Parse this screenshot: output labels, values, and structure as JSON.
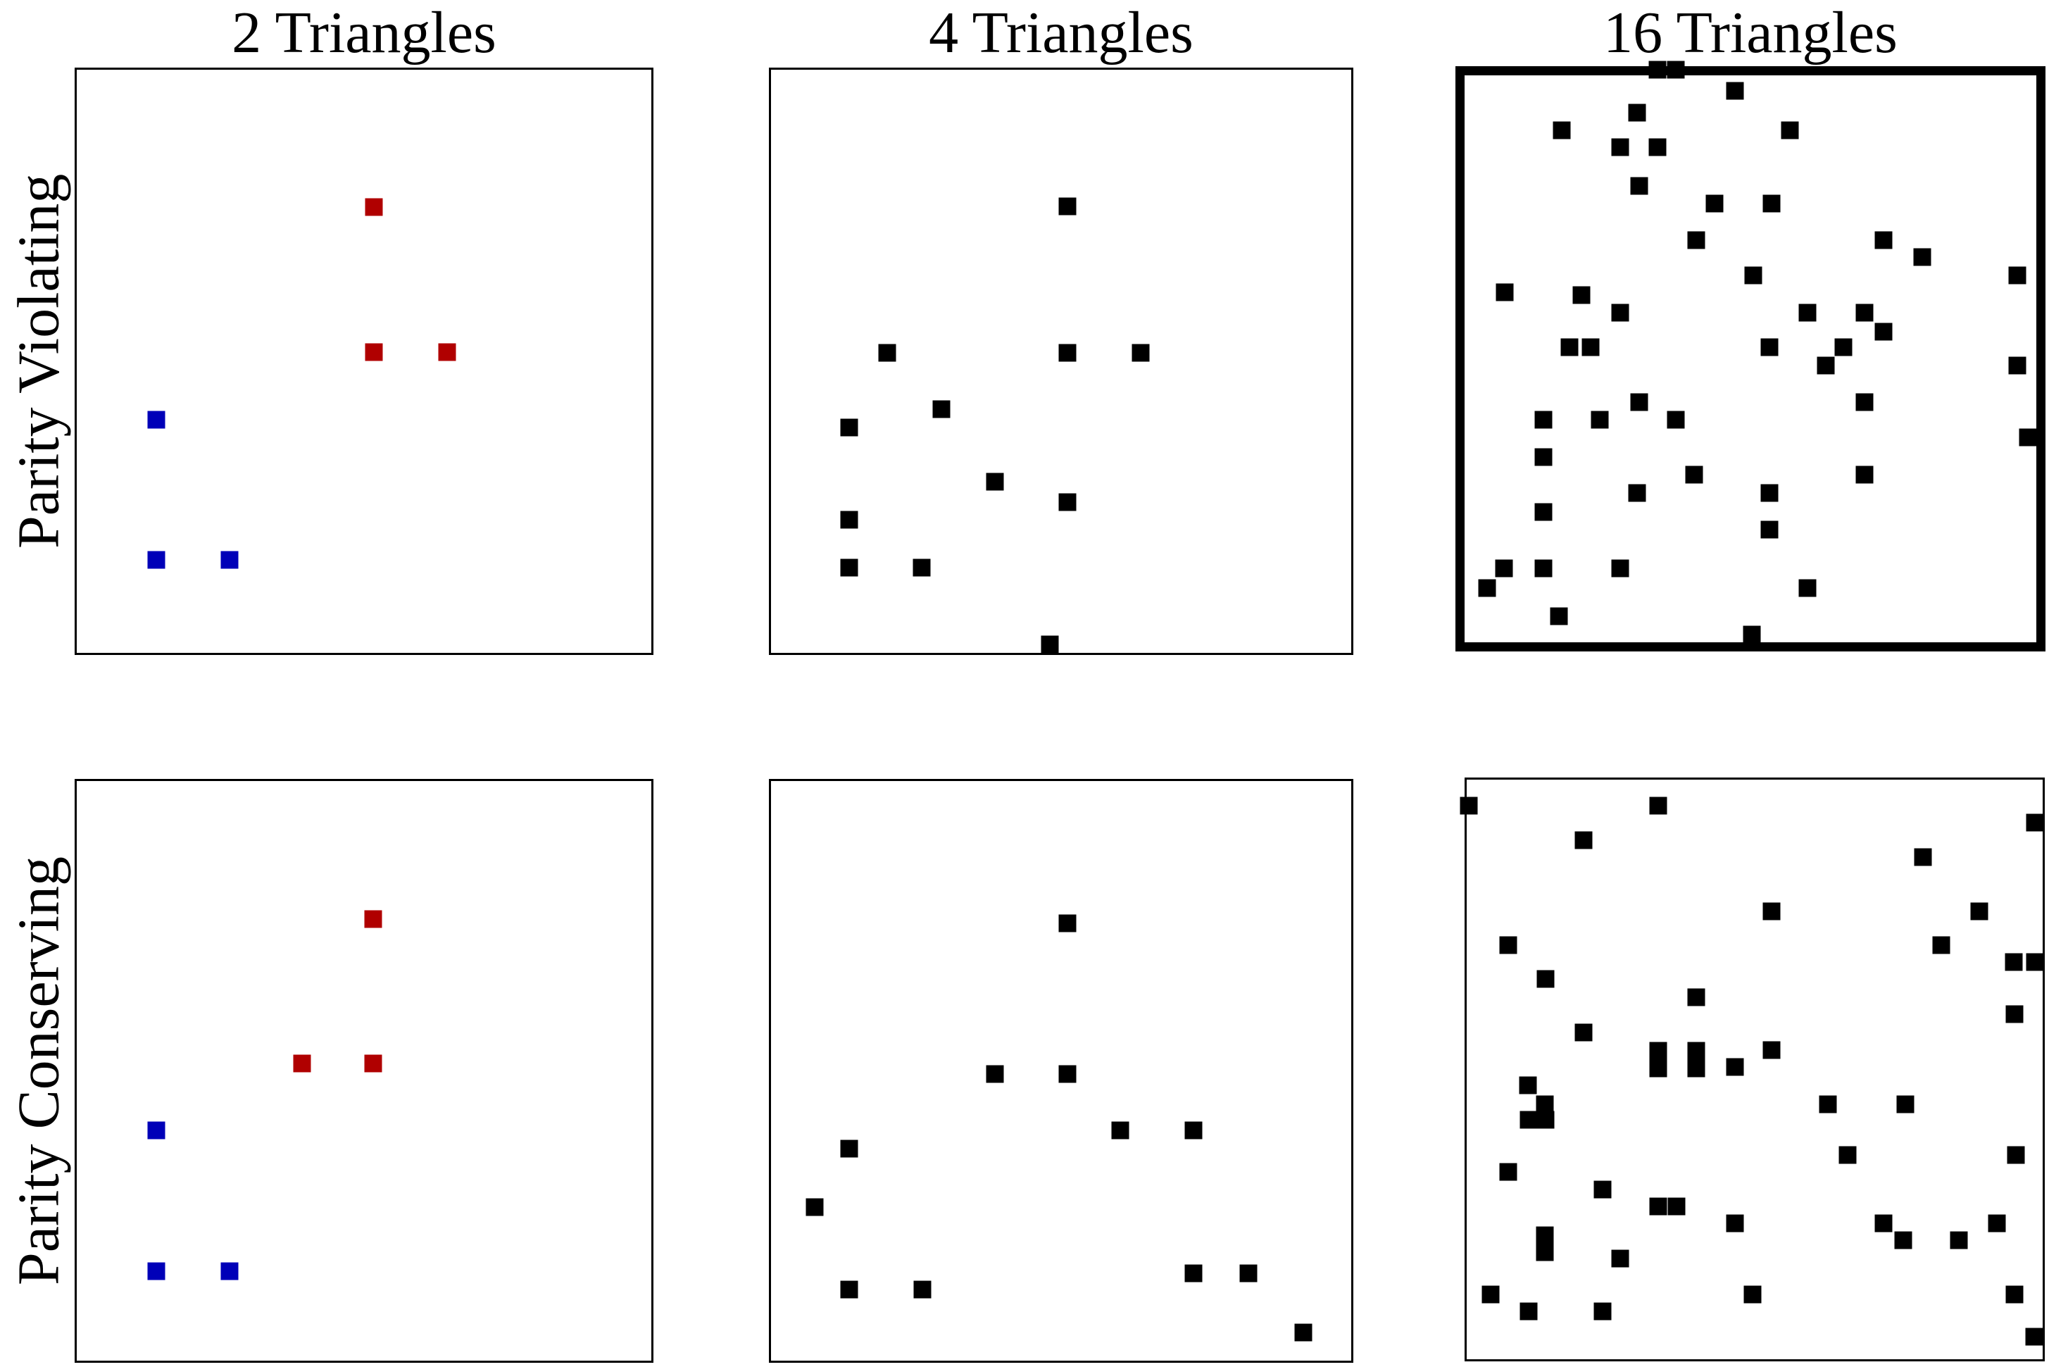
{
  "figure": {
    "column_titles": [
      "2 Triangles",
      "4 Triangles",
      "16 Triangles"
    ],
    "row_labels": [
      "Parity Violating",
      "Parity Conserving"
    ],
    "colors": {
      "red": "#b00000",
      "blue": "#0000b8",
      "black": "#000000"
    },
    "highlighted_panel": {
      "row": "Parity Violating",
      "column": "16 Triangles",
      "style": "thick black border"
    }
  },
  "chart_data": [
    {
      "panel": "top-left",
      "row": "Parity Violating",
      "column": "2 Triangles",
      "type": "scatter",
      "marker": "square",
      "coord_space": "normalized 0-1 within panel, y measured downward",
      "points": [
        {
          "x": 0.517,
          "y": 0.236,
          "c": "red"
        },
        {
          "x": 0.517,
          "y": 0.484,
          "c": "red"
        },
        {
          "x": 0.644,
          "y": 0.484,
          "c": "red"
        },
        {
          "x": 0.139,
          "y": 0.6,
          "c": "blue"
        },
        {
          "x": 0.139,
          "y": 0.841,
          "c": "blue"
        },
        {
          "x": 0.266,
          "y": 0.841,
          "c": "blue"
        }
      ]
    },
    {
      "panel": "top-middle",
      "row": "Parity Violating",
      "column": "4 Triangles",
      "type": "scatter",
      "marker": "square",
      "coord_space": "normalized 0-1 within panel, y measured downward",
      "points": [
        {
          "x": 0.511,
          "y": 0.234,
          "c": "black"
        },
        {
          "x": 0.2,
          "y": 0.486,
          "c": "black"
        },
        {
          "x": 0.511,
          "y": 0.486,
          "c": "black"
        },
        {
          "x": 0.637,
          "y": 0.486,
          "c": "black"
        },
        {
          "x": 0.294,
          "y": 0.582,
          "c": "black"
        },
        {
          "x": 0.135,
          "y": 0.613,
          "c": "black"
        },
        {
          "x": 0.386,
          "y": 0.707,
          "c": "black"
        },
        {
          "x": 0.511,
          "y": 0.741,
          "c": "black"
        },
        {
          "x": 0.135,
          "y": 0.772,
          "c": "black"
        },
        {
          "x": 0.135,
          "y": 0.854,
          "c": "black"
        },
        {
          "x": 0.26,
          "y": 0.854,
          "c": "black"
        },
        {
          "x": 0.48,
          "y": 0.986,
          "c": "black"
        }
      ]
    },
    {
      "panel": "top-right",
      "row": "Parity Violating",
      "column": "16 Triangles",
      "type": "scatter",
      "marker": "square",
      "highlighted": true,
      "coord_space": "normalized 0-1 within panel, y measured downward",
      "points": [
        {
          "x": 0.338,
          "y": -0.01,
          "c": "black"
        },
        {
          "x": 0.37,
          "y": -0.01,
          "c": "black"
        },
        {
          "x": 0.473,
          "y": 0.027,
          "c": "black"
        },
        {
          "x": 0.302,
          "y": 0.066,
          "c": "black"
        },
        {
          "x": 0.17,
          "y": 0.097,
          "c": "black"
        },
        {
          "x": 0.569,
          "y": 0.097,
          "c": "black"
        },
        {
          "x": 0.272,
          "y": 0.127,
          "c": "black"
        },
        {
          "x": 0.338,
          "y": 0.127,
          "c": "black"
        },
        {
          "x": 0.306,
          "y": 0.195,
          "c": "black"
        },
        {
          "x": 0.437,
          "y": 0.226,
          "c": "black"
        },
        {
          "x": 0.537,
          "y": 0.226,
          "c": "black"
        },
        {
          "x": 0.405,
          "y": 0.291,
          "c": "black"
        },
        {
          "x": 0.733,
          "y": 0.291,
          "c": "black"
        },
        {
          "x": 0.801,
          "y": 0.321,
          "c": "black"
        },
        {
          "x": 0.505,
          "y": 0.353,
          "c": "black"
        },
        {
          "x": 0.967,
          "y": 0.353,
          "c": "black"
        },
        {
          "x": 0.07,
          "y": 0.382,
          "c": "black"
        },
        {
          "x": 0.205,
          "y": 0.387,
          "c": "black"
        },
        {
          "x": 0.272,
          "y": 0.419,
          "c": "black"
        },
        {
          "x": 0.6,
          "y": 0.419,
          "c": "black"
        },
        {
          "x": 0.7,
          "y": 0.419,
          "c": "black"
        },
        {
          "x": 0.733,
          "y": 0.452,
          "c": "black"
        },
        {
          "x": 0.183,
          "y": 0.479,
          "c": "black"
        },
        {
          "x": 0.221,
          "y": 0.479,
          "c": "black"
        },
        {
          "x": 0.533,
          "y": 0.479,
          "c": "black"
        },
        {
          "x": 0.663,
          "y": 0.479,
          "c": "black"
        },
        {
          "x": 0.632,
          "y": 0.512,
          "c": "black"
        },
        {
          "x": 0.967,
          "y": 0.512,
          "c": "black"
        },
        {
          "x": 0.306,
          "y": 0.576,
          "c": "black"
        },
        {
          "x": 0.7,
          "y": 0.576,
          "c": "black"
        },
        {
          "x": 0.138,
          "y": 0.608,
          "c": "black"
        },
        {
          "x": 0.237,
          "y": 0.608,
          "c": "black"
        },
        {
          "x": 0.369,
          "y": 0.608,
          "c": "black"
        },
        {
          "x": 0.985,
          "y": 0.638,
          "c": "black"
        },
        {
          "x": 0.138,
          "y": 0.673,
          "c": "black"
        },
        {
          "x": 0.401,
          "y": 0.704,
          "c": "black"
        },
        {
          "x": 0.7,
          "y": 0.704,
          "c": "black"
        },
        {
          "x": 0.302,
          "y": 0.737,
          "c": "black"
        },
        {
          "x": 0.533,
          "y": 0.737,
          "c": "black"
        },
        {
          "x": 0.138,
          "y": 0.77,
          "c": "black"
        },
        {
          "x": 0.533,
          "y": 0.801,
          "c": "black"
        },
        {
          "x": 0.069,
          "y": 0.869,
          "c": "black"
        },
        {
          "x": 0.138,
          "y": 0.869,
          "c": "black"
        },
        {
          "x": 0.272,
          "y": 0.869,
          "c": "black"
        },
        {
          "x": 0.04,
          "y": 0.904,
          "c": "black"
        },
        {
          "x": 0.6,
          "y": 0.904,
          "c": "black"
        },
        {
          "x": 0.165,
          "y": 0.954,
          "c": "black"
        },
        {
          "x": 0.502,
          "y": 0.986,
          "c": "black"
        }
      ]
    },
    {
      "panel": "bottom-left",
      "row": "Parity Conserving",
      "column": "2 Triangles",
      "type": "scatter",
      "marker": "square",
      "coord_space": "normalized 0-1 within panel, y measured downward",
      "points": [
        {
          "x": 0.516,
          "y": 0.238,
          "c": "red"
        },
        {
          "x": 0.392,
          "y": 0.487,
          "c": "red"
        },
        {
          "x": 0.516,
          "y": 0.487,
          "c": "red"
        },
        {
          "x": 0.139,
          "y": 0.603,
          "c": "blue"
        },
        {
          "x": 0.139,
          "y": 0.846,
          "c": "blue"
        },
        {
          "x": 0.266,
          "y": 0.846,
          "c": "blue"
        }
      ]
    },
    {
      "panel": "bottom-middle",
      "row": "Parity Conserving",
      "column": "4 Triangles",
      "type": "scatter",
      "marker": "square",
      "coord_space": "normalized 0-1 within panel, y measured downward",
      "points": [
        {
          "x": 0.511,
          "y": 0.246,
          "c": "black"
        },
        {
          "x": 0.386,
          "y": 0.505,
          "c": "black"
        },
        {
          "x": 0.511,
          "y": 0.505,
          "c": "black"
        },
        {
          "x": 0.602,
          "y": 0.603,
          "c": "black"
        },
        {
          "x": 0.728,
          "y": 0.603,
          "c": "black"
        },
        {
          "x": 0.135,
          "y": 0.634,
          "c": "black"
        },
        {
          "x": 0.075,
          "y": 0.735,
          "c": "black"
        },
        {
          "x": 0.728,
          "y": 0.849,
          "c": "black"
        },
        {
          "x": 0.823,
          "y": 0.849,
          "c": "black"
        },
        {
          "x": 0.135,
          "y": 0.877,
          "c": "black"
        },
        {
          "x": 0.261,
          "y": 0.877,
          "c": "black"
        },
        {
          "x": 0.917,
          "y": 0.952,
          "c": "black"
        }
      ]
    },
    {
      "panel": "bottom-right",
      "row": "Parity Conserving",
      "column": "16 Triangles",
      "type": "scatter",
      "marker": "square",
      "coord_space": "normalized 0-1 within panel, y measured downward",
      "points": [
        {
          "x": 0.004,
          "y": 0.045,
          "c": "black"
        },
        {
          "x": 0.333,
          "y": 0.045,
          "c": "black"
        },
        {
          "x": 0.987,
          "y": 0.074,
          "c": "black"
        },
        {
          "x": 0.203,
          "y": 0.104,
          "c": "black"
        },
        {
          "x": 0.792,
          "y": 0.134,
          "c": "black"
        },
        {
          "x": 0.529,
          "y": 0.227,
          "c": "black"
        },
        {
          "x": 0.89,
          "y": 0.227,
          "c": "black"
        },
        {
          "x": 0.072,
          "y": 0.285,
          "c": "black"
        },
        {
          "x": 0.824,
          "y": 0.285,
          "c": "black"
        },
        {
          "x": 0.95,
          "y": 0.315,
          "c": "black"
        },
        {
          "x": 0.987,
          "y": 0.315,
          "c": "black"
        },
        {
          "x": 0.137,
          "y": 0.344,
          "c": "black"
        },
        {
          "x": 0.398,
          "y": 0.376,
          "c": "black"
        },
        {
          "x": 0.951,
          "y": 0.405,
          "c": "black"
        },
        {
          "x": 0.203,
          "y": 0.436,
          "c": "black"
        },
        {
          "x": 0.332,
          "y": 0.468,
          "c": "black"
        },
        {
          "x": 0.332,
          "y": 0.498,
          "c": "black"
        },
        {
          "x": 0.398,
          "y": 0.468,
          "c": "black"
        },
        {
          "x": 0.398,
          "y": 0.498,
          "c": "black"
        },
        {
          "x": 0.466,
          "y": 0.496,
          "c": "black"
        },
        {
          "x": 0.529,
          "y": 0.467,
          "c": "black"
        },
        {
          "x": 0.106,
          "y": 0.527,
          "c": "black"
        },
        {
          "x": 0.136,
          "y": 0.56,
          "c": "black"
        },
        {
          "x": 0.108,
          "y": 0.587,
          "c": "black"
        },
        {
          "x": 0.137,
          "y": 0.587,
          "c": "black"
        },
        {
          "x": 0.627,
          "y": 0.56,
          "c": "black"
        },
        {
          "x": 0.762,
          "y": 0.56,
          "c": "black"
        },
        {
          "x": 0.661,
          "y": 0.648,
          "c": "black"
        },
        {
          "x": 0.954,
          "y": 0.648,
          "c": "black"
        },
        {
          "x": 0.072,
          "y": 0.677,
          "c": "black"
        },
        {
          "x": 0.236,
          "y": 0.707,
          "c": "black"
        },
        {
          "x": 0.332,
          "y": 0.736,
          "c": "black"
        },
        {
          "x": 0.364,
          "y": 0.736,
          "c": "black"
        },
        {
          "x": 0.466,
          "y": 0.766,
          "c": "black"
        },
        {
          "x": 0.724,
          "y": 0.766,
          "c": "black"
        },
        {
          "x": 0.758,
          "y": 0.795,
          "c": "black"
        },
        {
          "x": 0.855,
          "y": 0.795,
          "c": "black"
        },
        {
          "x": 0.92,
          "y": 0.766,
          "c": "black"
        },
        {
          "x": 0.136,
          "y": 0.786,
          "c": "black"
        },
        {
          "x": 0.136,
          "y": 0.815,
          "c": "black"
        },
        {
          "x": 0.266,
          "y": 0.826,
          "c": "black"
        },
        {
          "x": 0.041,
          "y": 0.888,
          "c": "black"
        },
        {
          "x": 0.496,
          "y": 0.888,
          "c": "black"
        },
        {
          "x": 0.951,
          "y": 0.888,
          "c": "black"
        },
        {
          "x": 0.108,
          "y": 0.917,
          "c": "black"
        },
        {
          "x": 0.236,
          "y": 0.917,
          "c": "black"
        },
        {
          "x": 0.985,
          "y": 0.961,
          "c": "black"
        }
      ]
    }
  ]
}
